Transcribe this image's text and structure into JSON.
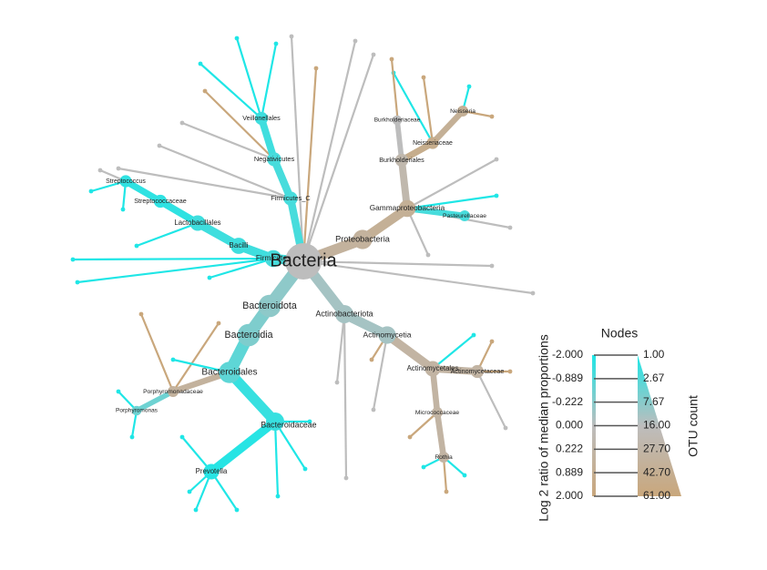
{
  "tree": {
    "nodes": [
      {
        "label": "Bacteria",
        "parent": null,
        "ratio": 0,
        "count": 61
      },
      {
        "label": "Proteobacteria",
        "parent": 0,
        "ratio": 1.0,
        "count": 14
      },
      {
        "label": "Gammaproteobacteria",
        "parent": 1,
        "ratio": 1.2,
        "count": 10
      },
      {
        "label": "Burkholderiales",
        "parent": 2,
        "ratio": 0.5,
        "count": 5
      },
      {
        "label": "Neisseriaceae",
        "parent": 3,
        "ratio": 1.5,
        "count": 4
      },
      {
        "label": "Neisseria",
        "parent": 4,
        "ratio": 1.2,
        "count": 3
      },
      {
        "label": "Pasteurellaceae",
        "parent": 2,
        "ratio": -1.5,
        "count": 3
      },
      {
        "label": "Firmicutes_C",
        "parent": 0,
        "ratio": -1.5,
        "count": 6
      },
      {
        "label": "Negativicutes",
        "parent": 7,
        "ratio": -1.5,
        "count": 6
      },
      {
        "label": "Veillonellales",
        "parent": 8,
        "ratio": -1.6,
        "count": 5
      },
      {
        "label": "Firmicutes",
        "parent": 0,
        "ratio": -1.5,
        "count": 10
      },
      {
        "label": "Bacilli",
        "parent": 10,
        "ratio": -1.6,
        "count": 9
      },
      {
        "label": "Lactobacillales",
        "parent": 11,
        "ratio": -1.6,
        "count": 8
      },
      {
        "label": "Streptococcaceae",
        "parent": 12,
        "ratio": -1.8,
        "count": 5
      },
      {
        "label": "Streptococcus",
        "parent": 13,
        "ratio": -1.8,
        "count": 4
      },
      {
        "label": "Bacteroidota",
        "parent": 0,
        "ratio": -0.6,
        "count": 20
      },
      {
        "label": "Bacteroidia",
        "parent": 15,
        "ratio": -0.8,
        "count": 20
      },
      {
        "label": "Bacteroidales",
        "parent": 16,
        "ratio": -1.2,
        "count": 18
      },
      {
        "label": "Bacteroidaceae",
        "parent": 17,
        "ratio": -1.7,
        "count": 12
      },
      {
        "label": "Prevotella",
        "parent": 18,
        "ratio": -1.9,
        "count": 8
      },
      {
        "label": "Porphyromonadaceae",
        "parent": 17,
        "ratio": 1.0,
        "count": 3
      },
      {
        "label": "Porphyromonas",
        "parent": 20,
        "ratio": -1.0,
        "count": 2
      },
      {
        "label": "Actinobacteriota",
        "parent": 0,
        "ratio": -0.3,
        "count": 12
      },
      {
        "label": "Actinomycetia",
        "parent": 22,
        "ratio": -0.3,
        "count": 11
      },
      {
        "label": "Actinomycetales",
        "parent": 23,
        "ratio": 0.8,
        "count": 8
      },
      {
        "label": "Actinomycetaceae",
        "parent": 24,
        "ratio": 0.8,
        "count": 5
      },
      {
        "label": "Micrococcaceae",
        "parent": 24,
        "ratio": 0.8,
        "count": 3
      },
      {
        "label": "Rothia",
        "parent": 26,
        "ratio": 0.8,
        "count": 3
      },
      {
        "label": "Burkholderiaceae",
        "parent": 3,
        "ratio": 0,
        "count": 2
      }
    ]
  },
  "legend": {
    "title": "Nodes",
    "color_title": "Log 2 ratio of median proportions",
    "size_title": "OTU count",
    "color_ticks": [
      {
        "value": -2,
        "label": "-2.000"
      },
      {
        "value": -0.889,
        "label": "-0.889"
      },
      {
        "value": -0.222,
        "label": "-0.222"
      },
      {
        "value": 0,
        "label": "0.000"
      },
      {
        "value": 0.222,
        "label": "0.222"
      },
      {
        "value": 0.889,
        "label": "0.889"
      },
      {
        "value": 2,
        "label": "2.000"
      }
    ],
    "size_ticks": [
      {
        "value": 1,
        "label": "1.00"
      },
      {
        "value": 2.67,
        "label": "2.67"
      },
      {
        "value": 7.67,
        "label": "7.67"
      },
      {
        "value": 16,
        "label": "16.00"
      },
      {
        "value": 27.7,
        "label": "27.70"
      },
      {
        "value": 42.7,
        "label": "42.70"
      },
      {
        "value": 61,
        "label": "61.00"
      }
    ],
    "colors": [
      "#1fe6e6",
      "#bdbdbd",
      "#c9a77c"
    ]
  }
}
